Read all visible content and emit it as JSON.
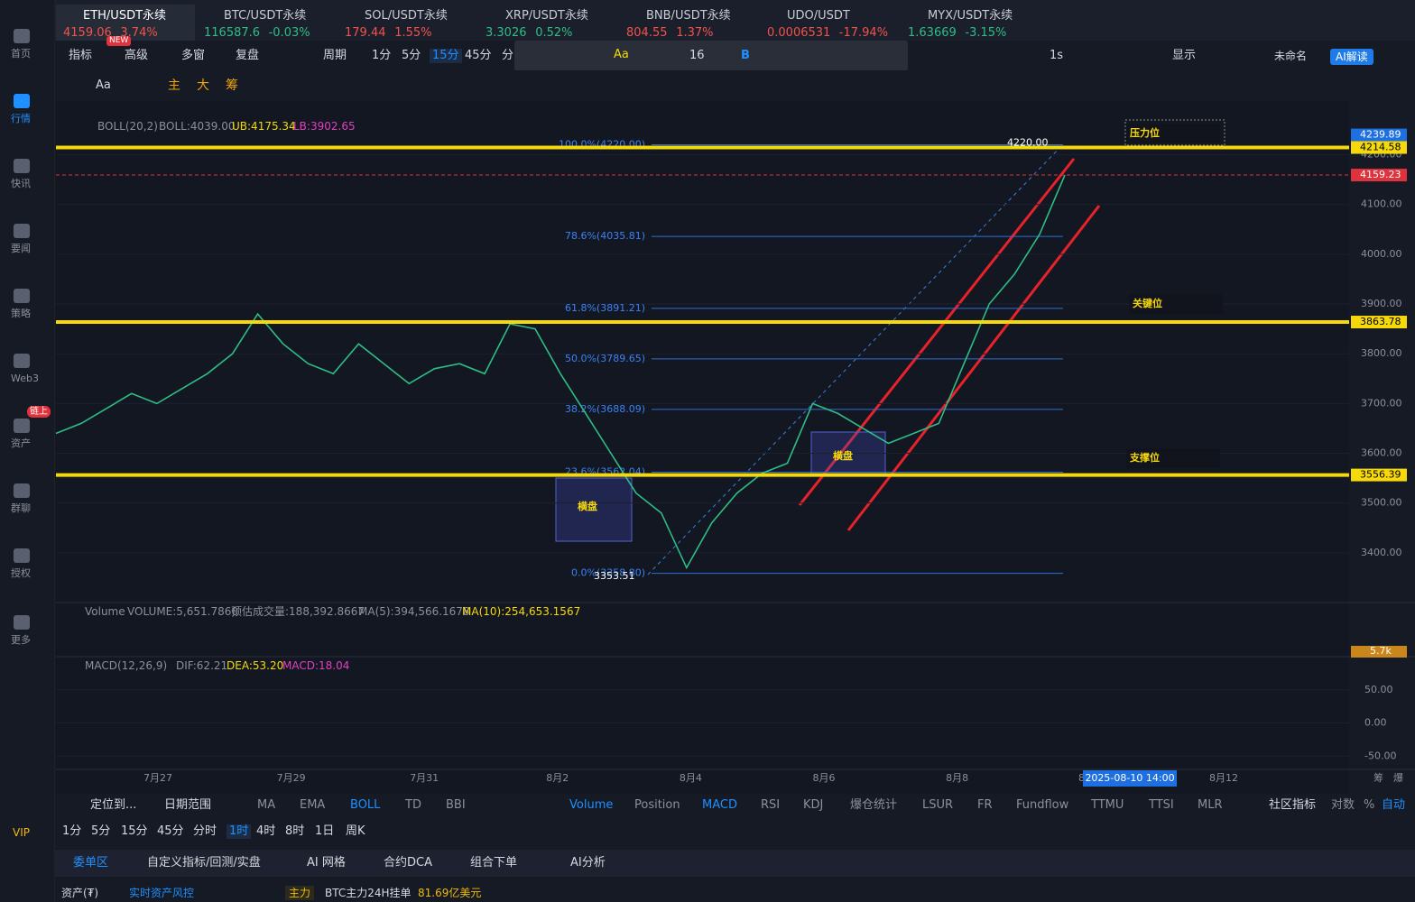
{
  "tabs": [
    {
      "symbol": "ETH/USDT永续",
      "price": "4159.06",
      "change": "3.74%",
      "color": "#f0534b"
    },
    {
      "symbol": "BTC/USDT永续",
      "price": "116587.6",
      "change": "-0.03%",
      "color": "#2ebd85"
    },
    {
      "symbol": "SOL/USDT永续",
      "price": "179.44",
      "change": "1.55%",
      "color": "#f0534b"
    },
    {
      "symbol": "XRP/USDT永续",
      "price": "3.3026",
      "change": "0.52%",
      "color": "#2ebd85"
    },
    {
      "symbol": "BNB/USDT永续",
      "price": "804.55",
      "change": "1.37%",
      "color": "#f0534b"
    },
    {
      "symbol": "UDO/USDT",
      "price": "0.0006531",
      "change": "-17.94%",
      "color": "#f0534b"
    },
    {
      "symbol": "MYX/USDT永续",
      "price": "1.63669",
      "change": "-3.15%",
      "color": "#2ebd85"
    }
  ],
  "new_badge": "NEW",
  "sidebar": [
    "首页",
    "行情",
    "快讯",
    "要闻",
    "策略",
    "Web3",
    "资产",
    "群聊",
    "授权",
    "更多"
  ],
  "sidebar_badge": "链上",
  "vip": "VIP",
  "toolbar": [
    {
      "label": "指标",
      "active": false
    },
    {
      "label": "高级",
      "active": false
    },
    {
      "label": "多窗",
      "active": false
    },
    {
      "label": "复盘",
      "active": false
    },
    {
      "label": "周期",
      "active": false
    },
    {
      "label": "1分",
      "active": false
    },
    {
      "label": "5分",
      "active": false
    },
    {
      "label": "15分",
      "active": true
    },
    {
      "label": "45分",
      "active": false
    },
    {
      "label": "分",
      "active": false
    }
  ],
  "float_toolbar": {
    "font": "Aa",
    "size": "16",
    "bold": "B"
  },
  "toolbar_right": {
    "interval": "1s",
    "display": "显示",
    "layout": "未命名",
    "ai": "AI解读"
  },
  "draw_row": {
    "text": "Aa",
    "tags": [
      "主",
      "大",
      "筹"
    ]
  },
  "boll_legend": {
    "name": "BOLL(20,2)",
    "mid": "BOLL:4039.00",
    "ub": "UB:4175.34",
    "lb": "LB:3902.65"
  },
  "chart": {
    "ylim": [
      3300,
      4308
    ],
    "yticks": [
      {
        "value": 4200,
        "label": "4200.00"
      },
      {
        "value": 4100,
        "label": "4100.00"
      },
      {
        "value": 4000,
        "label": "4000.00"
      },
      {
        "value": 3900,
        "label": "3900.00"
      },
      {
        "value": 3800,
        "label": "3800.00"
      },
      {
        "value": 3700,
        "label": "3700.00"
      },
      {
        "value": 3600,
        "label": "3600.00"
      },
      {
        "value": 3500,
        "label": "3500.00"
      },
      {
        "value": 3400,
        "label": "3400.00"
      }
    ],
    "price": {
      "color": "#2ebd85",
      "values": [
        3640,
        3660,
        3690,
        3720,
        3700,
        3730,
        3760,
        3800,
        3880,
        3820,
        3780,
        3760,
        3820,
        3780,
        3740,
        3770,
        3780,
        3760,
        3860,
        3850,
        3760,
        3680,
        3600,
        3520,
        3480,
        3370,
        3460,
        3520,
        3560,
        3580,
        3700,
        3680,
        3650,
        3620,
        3640,
        3660,
        3780,
        3900,
        3960,
        4040,
        4159.23
      ]
    },
    "levels": [
      {
        "value": 4239.89,
        "label": "4239.89",
        "color": "#1e6fe0",
        "line": false
      },
      {
        "value": 4214.58,
        "label": "4214.58",
        "color": "#f5d90a",
        "line": true
      },
      {
        "value": 4159.23,
        "label": "4159.23",
        "color": "#e0323c",
        "line": true
      },
      {
        "value": 3863.78,
        "label": "3863.78",
        "color": "#f5d90a",
        "line": true
      },
      {
        "value": 3556.39,
        "label": "3556.39",
        "color": "#f5d90a",
        "line": true
      }
    ],
    "fib": [
      {
        "value": 4220,
        "label": "100.0%(4220.00)"
      },
      {
        "value": 4035.81,
        "label": "78.6%(4035.81)"
      },
      {
        "value": 3891.21,
        "label": "61.8%(3891.21)"
      },
      {
        "value": 3789.65,
        "label": "50.0%(3789.65)"
      },
      {
        "value": 3688.09,
        "label": "38.2%(3688.09)"
      },
      {
        "value": 3562.04,
        "label": "23.6%(3562.04)"
      },
      {
        "value": 3358.8,
        "label": "0.0%(3358.80)"
      }
    ],
    "high_label": "4220.00",
    "low_label": "3353.51",
    "zones": [
      "压力位",
      "关键位",
      "支撑位"
    ],
    "ranges": [
      "横盘",
      "横盘"
    ],
    "dates": [
      "7月27",
      "7月29",
      "7月31",
      "8月2",
      "8月4",
      "8月6",
      "8月8"
    ],
    "date_partial": "8",
    "crosshair_date": "2025-08-10 14:00",
    "date_last": "8月12"
  },
  "volume_legend": [
    "Volume",
    "VOLUME:5,651.7860",
    "预估成交量:188,392.8667",
    "MA(5):394,566.1678",
    "MA(10):254,653.1567"
  ],
  "volume_label": "5.7k",
  "macd_legend": [
    "MACD(12,26,9)",
    "DIF:62.21",
    "DEA:53.20",
    "MACD:18.04"
  ],
  "macd_ticks": [
    {
      "value": 50,
      "label": "50.00"
    },
    {
      "value": 0,
      "label": "0.00"
    },
    {
      "value": -50,
      "label": "-50.00"
    }
  ],
  "macd_ylim": [
    -70,
    100
  ],
  "axis_corner": [
    "筹",
    "爆"
  ],
  "bottom_bar": {
    "locate": "定位到...",
    "range": "日期范围",
    "main": [
      {
        "label": "MA",
        "active": false
      },
      {
        "label": "EMA",
        "active": false
      },
      {
        "label": "BOLL",
        "active": true
      },
      {
        "label": "TD",
        "active": false
      },
      {
        "label": "BBI",
        "active": false
      }
    ],
    "sub": [
      {
        "label": "Volume",
        "active": true
      },
      {
        "label": "Position",
        "active": false
      },
      {
        "label": "MACD",
        "active": true
      },
      {
        "label": "RSI",
        "active": false
      },
      {
        "label": "KDJ",
        "active": false
      },
      {
        "label": "爆仓统计",
        "active": false
      },
      {
        "label": "LSUR",
        "active": false
      },
      {
        "label": "FR",
        "active": false
      },
      {
        "label": "Fundflow",
        "active": false
      },
      {
        "label": "TTMU",
        "active": false
      },
      {
        "label": "TTSI",
        "active": false
      },
      {
        "label": "MLR",
        "active": false
      }
    ],
    "social": "社区指标",
    "opts": [
      "对数",
      "%",
      "自动"
    ]
  },
  "timeframes": [
    {
      "label": "1分",
      "active": false
    },
    {
      "label": "5分",
      "active": false
    },
    {
      "label": "15分",
      "active": false
    },
    {
      "label": "45分",
      "active": false
    },
    {
      "label": "分时",
      "active": false
    },
    {
      "label": "1时",
      "active": true
    },
    {
      "label": "4时",
      "active": false
    },
    {
      "label": "8时",
      "active": false
    },
    {
      "label": "1日",
      "active": false
    },
    {
      "label": "周K",
      "active": false
    }
  ],
  "panel_tabs": [
    {
      "label": "委单区",
      "active": true
    },
    {
      "label": "自定义指标/回测/实盘",
      "active": false
    },
    {
      "label": "AI 网格",
      "active": false
    },
    {
      "label": "合约DCA",
      "active": false
    },
    {
      "label": "组合下单",
      "active": false
    },
    {
      "label": "AI分析",
      "active": false
    }
  ],
  "asset_bar": {
    "asset": "资产(₮)",
    "risk": "实时资产风控",
    "main": "主力",
    "btc": "BTC主力24H挂单",
    "amount": "81.69亿美元"
  }
}
